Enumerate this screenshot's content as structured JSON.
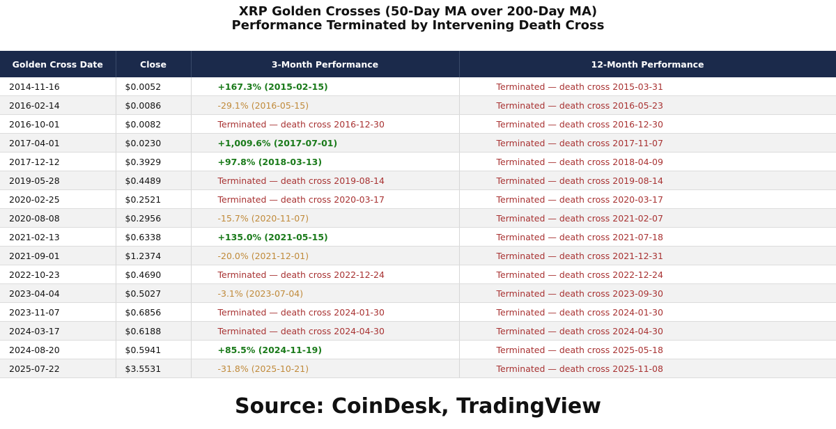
{
  "header": {
    "title": [
      "XRP Golden Crosses (50-Day MA over 200-Day MA)",
      "Performance Terminated by Intervening Death Cross"
    ]
  },
  "table": {
    "columns": [
      "Golden Cross Date",
      "Close",
      "3-Month Performance",
      "12-Month Performance"
    ],
    "rows": [
      [
        "2014-11-16",
        "$0.0052",
        "+167.3% (2015-02-15)",
        "Terminated — death cross 2015-03-31"
      ],
      [
        "2016-02-14",
        "$0.0086",
        "-29.1% (2016-05-15)",
        "Terminated — death cross 2016-05-23"
      ],
      [
        "2016-10-01",
        "$0.0082",
        "Terminated — death cross 2016-12-30",
        "Terminated — death cross 2016-12-30"
      ],
      [
        "2017-04-01",
        "$0.0230",
        "+1,009.6% (2017-07-01)",
        "Terminated — death cross 2017-11-07"
      ],
      [
        "2017-12-12",
        "$0.3929",
        "+97.8% (2018-03-13)",
        "Terminated — death cross 2018-04-09"
      ],
      [
        "2019-05-28",
        "$0.4489",
        "Terminated — death cross 2019-08-14",
        "Terminated — death cross 2019-08-14"
      ],
      [
        "2020-02-25",
        "$0.2521",
        "Terminated — death cross 2020-03-17",
        "Terminated — death cross 2020-03-17"
      ],
      [
        "2020-08-08",
        "$0.2956",
        "-15.7% (2020-11-07)",
        "Terminated — death cross 2021-02-07"
      ],
      [
        "2021-02-13",
        "$0.6338",
        "+135.0% (2021-05-15)",
        "Terminated — death cross 2021-07-18"
      ],
      [
        "2021-09-01",
        "$1.2374",
        "-20.0% (2021-12-01)",
        "Terminated — death cross 2021-12-31"
      ],
      [
        "2022-10-23",
        "$0.4690",
        "Terminated — death cross 2022-12-24",
        "Terminated — death cross 2022-12-24"
      ],
      [
        "2023-04-04",
        "$0.5027",
        "-3.1% (2023-07-04)",
        "Terminated — death cross 2023-09-30"
      ],
      [
        "2023-11-07",
        "$0.6856",
        "Terminated — death cross 2024-01-30",
        "Terminated — death cross 2024-01-30"
      ],
      [
        "2024-03-17",
        "$0.6188",
        "Terminated — death cross 2024-04-30",
        "Terminated — death cross 2024-04-30"
      ],
      [
        "2024-08-20",
        "$0.5941",
        "+85.5% (2024-11-19)",
        "Terminated — death cross 2025-05-18"
      ],
      [
        "2025-07-22",
        "$3.5531",
        "-31.8% (2025-10-21)",
        "Terminated — death cross 2025-11-08"
      ]
    ]
  },
  "footer": {
    "source": "Source: CoinDesk, TradingView"
  }
}
